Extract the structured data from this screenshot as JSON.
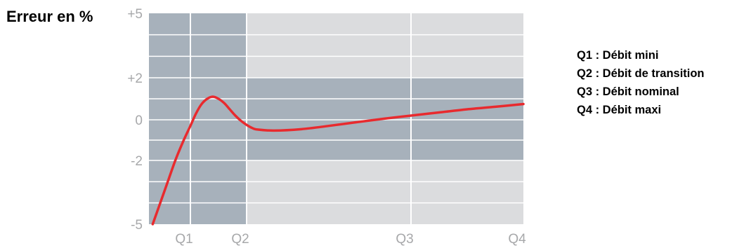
{
  "chart_data": {
    "type": "line",
    "title": "",
    "ylabel": "Erreur en %",
    "xlabel": "",
    "x_ticks": [
      {
        "label": "Q1",
        "x": 1
      },
      {
        "label": "Q2",
        "x": 2
      },
      {
        "label": "Q3",
        "x": 5
      },
      {
        "label": "Q4",
        "x": 7
      }
    ],
    "x_range": [
      0.45,
      7
    ],
    "y_ticks": [
      {
        "label": "+5",
        "value": 5
      },
      {
        "label": "+2",
        "value": 2
      },
      {
        "label": "0",
        "value": 0
      },
      {
        "label": "-2",
        "value": -2
      },
      {
        "label": "-5",
        "value": -5
      }
    ],
    "ylim": [
      -5,
      5
    ],
    "tolerance_bands": [
      {
        "x_from": 0.45,
        "x_to": 2,
        "y_from": -5,
        "y_to": 5,
        "color": "#a7b1bb"
      },
      {
        "x_from": 2,
        "x_to": 7,
        "y_from": -2,
        "y_to": 2,
        "color": "#a7b1bb"
      }
    ],
    "background_color": "#dbdcde",
    "gridline_color": "#ffffff",
    "series": [
      {
        "color": "#e82a2e",
        "x": [
          0.5,
          0.6,
          0.7,
          0.8,
          0.9,
          1.0,
          1.1,
          1.2,
          1.3,
          1.4,
          1.5,
          1.6,
          1.7,
          1.8,
          1.9,
          2.0,
          2.1,
          2.2,
          2.5,
          3.0,
          3.5,
          4.0,
          4.5,
          5.0,
          5.5,
          6.0,
          6.5,
          7.0
        ],
        "y": [
          -5.0,
          -4.0,
          -3.0,
          -2.0,
          -1.1,
          -0.3,
          0.3,
          0.75,
          1.0,
          1.1,
          1.0,
          0.8,
          0.5,
          0.2,
          -0.05,
          -0.25,
          -0.4,
          -0.48,
          -0.53,
          -0.46,
          -0.3,
          -0.12,
          0.05,
          0.2,
          0.35,
          0.5,
          0.62,
          0.75
        ]
      }
    ],
    "legend": {
      "placement": "right",
      "entries": [
        "Q1 : Débit mini",
        "Q2 : Débit de transition",
        "Q3 : Débit nominal",
        "Q4 : Débit maxi"
      ]
    },
    "grid": true
  },
  "colors": {
    "tick_text": "#a7a8aa",
    "legend_text": "#000000"
  }
}
